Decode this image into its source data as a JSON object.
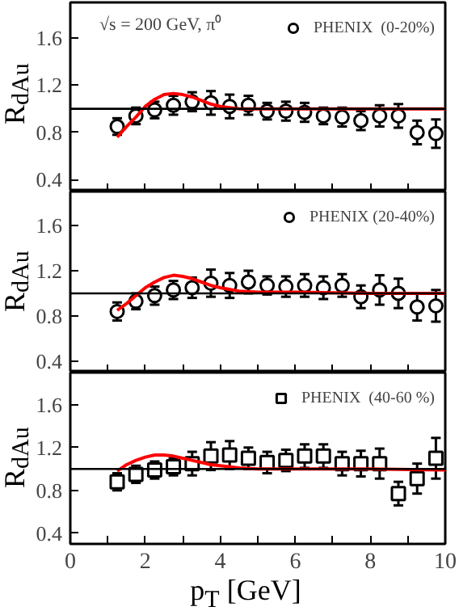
{
  "chart_data": [
    {
      "type": "scatter",
      "ylabel": "R$_{dAu}$",
      "xlim": [
        0,
        10
      ],
      "ylim": [
        0.3,
        1.9
      ],
      "xticks": [
        {
          "value": 0,
          "label": null
        },
        {
          "value": 1,
          "label": null
        },
        {
          "value": 2,
          "label": null
        },
        {
          "value": 3,
          "label": null
        },
        {
          "value": 4,
          "label": null
        },
        {
          "value": 5,
          "label": null
        },
        {
          "value": 6,
          "label": null
        },
        {
          "value": 7,
          "label": null
        },
        {
          "value": 8,
          "label": null
        },
        {
          "value": 9,
          "label": null
        },
        {
          "value": 10,
          "label": null
        }
      ],
      "yticks": [
        0.4,
        0.8,
        1.2,
        1.6
      ],
      "tick_labels": "y",
      "legend": "top right",
      "grid": false,
      "annotations": [
        "√s = 200 GeV, π⁰"
      ],
      "ref_lines": [
        {
          "axis": "y",
          "value": 1.0,
          "color": "#000000"
        }
      ],
      "series": [
        {
          "name": "PHENIX  (0-20%)",
          "marker": "circle",
          "color": "#000000",
          "x": [
            1.25,
            1.75,
            2.25,
            2.75,
            3.25,
            3.75,
            4.25,
            4.75,
            5.25,
            5.75,
            6.25,
            6.75,
            7.25,
            7.75,
            8.25,
            8.75,
            9.25,
            9.75
          ],
          "values": [
            0.85,
            0.94,
            0.99,
            1.03,
            1.06,
            1.05,
            1.02,
            1.03,
            0.98,
            0.98,
            0.97,
            0.94,
            0.93,
            0.9,
            0.94,
            0.94,
            0.8,
            0.79
          ],
          "errors": [
            0.07,
            0.07,
            0.07,
            0.08,
            0.08,
            0.1,
            0.1,
            0.08,
            0.07,
            0.08,
            0.08,
            0.07,
            0.08,
            0.08,
            0.09,
            0.1,
            0.1,
            0.12
          ]
        },
        {
          "type": "line",
          "color": "#ff0000",
          "marker": "none",
          "x": [
            1.25,
            1.5,
            1.75,
            2,
            2.25,
            2.5,
            2.75,
            3,
            3.25,
            3.5,
            3.75,
            4,
            4.5,
            5,
            6,
            8,
            10
          ],
          "values": [
            0.76,
            0.85,
            0.93,
            1.02,
            1.08,
            1.12,
            1.13,
            1.12,
            1.1,
            1.07,
            1.04,
            1.02,
            1.0,
            1.0,
            1.0,
            1.0,
            1.0
          ]
        }
      ]
    },
    {
      "type": "scatter",
      "ylabel": "R$_{dAu}$",
      "xlim": [
        0,
        10
      ],
      "ylim": [
        0.3,
        1.9
      ],
      "xticks": [
        {
          "value": 0,
          "label": null
        },
        {
          "value": 1,
          "label": null
        },
        {
          "value": 2,
          "label": null
        },
        {
          "value": 3,
          "label": null
        },
        {
          "value": 4,
          "label": null
        },
        {
          "value": 5,
          "label": null
        },
        {
          "value": 6,
          "label": null
        },
        {
          "value": 7,
          "label": null
        },
        {
          "value": 8,
          "label": null
        },
        {
          "value": 9,
          "label": null
        },
        {
          "value": 10,
          "label": null
        }
      ],
      "yticks": [
        0.4,
        0.8,
        1.2,
        1.6
      ],
      "tick_labels": "y",
      "legend": "top right",
      "grid": false,
      "ref_lines": [
        {
          "axis": "y",
          "value": 1.0,
          "color": "#000000"
        }
      ],
      "series": [
        {
          "name": "PHENIX (20-40%)",
          "marker": "circle",
          "color": "#000000",
          "x": [
            1.25,
            1.75,
            2.25,
            2.75,
            3.25,
            3.75,
            4.25,
            4.75,
            5.25,
            5.75,
            6.25,
            6.75,
            7.25,
            7.75,
            8.25,
            8.75,
            9.25,
            9.75
          ],
          "values": [
            0.84,
            0.93,
            0.98,
            1.03,
            1.05,
            1.09,
            1.07,
            1.1,
            1.07,
            1.06,
            1.07,
            1.05,
            1.07,
            0.97,
            1.03,
            1.0,
            0.88,
            0.89
          ],
          "errors": [
            0.08,
            0.07,
            0.08,
            0.08,
            0.09,
            0.12,
            0.11,
            0.1,
            0.08,
            0.09,
            0.1,
            0.1,
            0.1,
            0.1,
            0.13,
            0.13,
            0.12,
            0.14
          ]
        },
        {
          "type": "line",
          "color": "#ff0000",
          "marker": "none",
          "x": [
            1.25,
            1.5,
            1.75,
            2,
            2.25,
            2.5,
            2.75,
            3,
            3.25,
            3.5,
            3.75,
            4,
            4.5,
            5,
            6,
            8,
            10
          ],
          "values": [
            0.85,
            0.91,
            0.98,
            1.05,
            1.1,
            1.14,
            1.16,
            1.15,
            1.13,
            1.1,
            1.07,
            1.05,
            1.02,
            1.01,
            1.01,
            1.0,
            1.0
          ]
        }
      ]
    },
    {
      "type": "scatter",
      "ylabel": "R$_{dAu}$",
      "xlabel": "p$_{T}$ [GeV]",
      "xlim": [
        0,
        10
      ],
      "ylim": [
        0.3,
        1.9
      ],
      "xticks": [
        0,
        {
          "value": 1,
          "label": null
        },
        2,
        {
          "value": 3,
          "label": null
        },
        4,
        {
          "value": 5,
          "label": null
        },
        6,
        {
          "value": 7,
          "label": null
        },
        8,
        {
          "value": 9,
          "label": null
        },
        10
      ],
      "yticks": [
        0.4,
        0.8,
        1.2,
        1.6
      ],
      "legend": "top right",
      "grid": false,
      "ref_lines": [
        {
          "axis": "y",
          "value": 1.0,
          "color": "#000000"
        }
      ],
      "series": [
        {
          "name": "PHENIX  (40-60 %)",
          "marker": "square",
          "color": "#000000",
          "x": [
            1.25,
            1.75,
            2.25,
            2.75,
            3.25,
            3.75,
            4.25,
            4.75,
            5.25,
            5.75,
            6.25,
            6.75,
            7.25,
            7.75,
            8.25,
            8.75,
            9.25,
            9.75
          ],
          "values": [
            0.88,
            0.95,
            0.99,
            1.02,
            1.05,
            1.12,
            1.13,
            1.1,
            1.06,
            1.08,
            1.12,
            1.12,
            1.05,
            1.05,
            1.05,
            0.77,
            0.91,
            1.1
          ],
          "errors": [
            0.08,
            0.08,
            0.08,
            0.08,
            0.11,
            0.13,
            0.13,
            0.1,
            0.1,
            0.1,
            0.11,
            0.11,
            0.11,
            0.12,
            0.14,
            0.11,
            0.14,
            0.19
          ]
        },
        {
          "type": "line",
          "color": "#ff0000",
          "marker": "none",
          "x": [
            1.25,
            1.5,
            1.75,
            2,
            2.25,
            2.5,
            2.75,
            3,
            3.25,
            3.5,
            3.75,
            4,
            4.5,
            5,
            6,
            8,
            10
          ],
          "values": [
            0.98,
            1.04,
            1.08,
            1.11,
            1.13,
            1.13,
            1.12,
            1.1,
            1.08,
            1.06,
            1.04,
            1.03,
            1.01,
            1.0,
            1.0,
            1.0,
            0.99
          ]
        }
      ]
    }
  ]
}
